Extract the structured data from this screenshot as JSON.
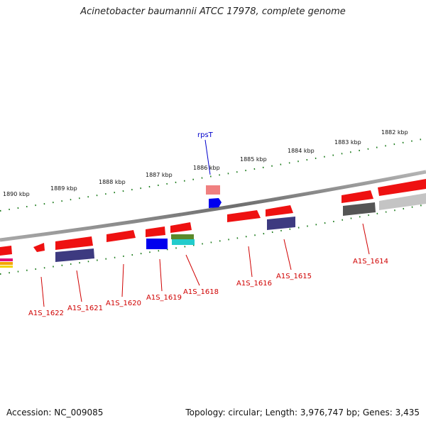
{
  "title": "Acinetobacter baumannii ATCC 17978, complete genome",
  "footer": {
    "accession": "Accession: NC_009085",
    "summary": "Topology: circular; Length: 3,976,747 bp; Genes: 3,435"
  },
  "kbp_labels": [
    "1890 kbp",
    "1889 kbp",
    "1888 kbp",
    "1887 kbp",
    "1886 kbp",
    "1885 kbp",
    "1884 kbp",
    "1883 kbp",
    "1882 kbp"
  ],
  "genes": [
    {
      "id": "rpsT",
      "color": "blue"
    },
    {
      "id": "A1S_1622",
      "color": "red"
    },
    {
      "id": "A1S_1621",
      "color": "red"
    },
    {
      "id": "A1S_1620",
      "color": "red"
    },
    {
      "id": "A1S_1619",
      "color": "red"
    },
    {
      "id": "A1S_1618",
      "color": "red"
    },
    {
      "id": "A1S_1616",
      "color": "red"
    },
    {
      "id": "A1S_1615",
      "color": "red"
    },
    {
      "id": "A1S_1614",
      "color": "red"
    }
  ],
  "colors": {
    "backbone": "#7a7a7a",
    "tick": "#1a7a1a",
    "gene_red": "#ee1111",
    "gene_purple": "#3d3a80",
    "gene_blue": "#0000ee",
    "gene_gray": "#555555",
    "label_red": "#d00000"
  }
}
